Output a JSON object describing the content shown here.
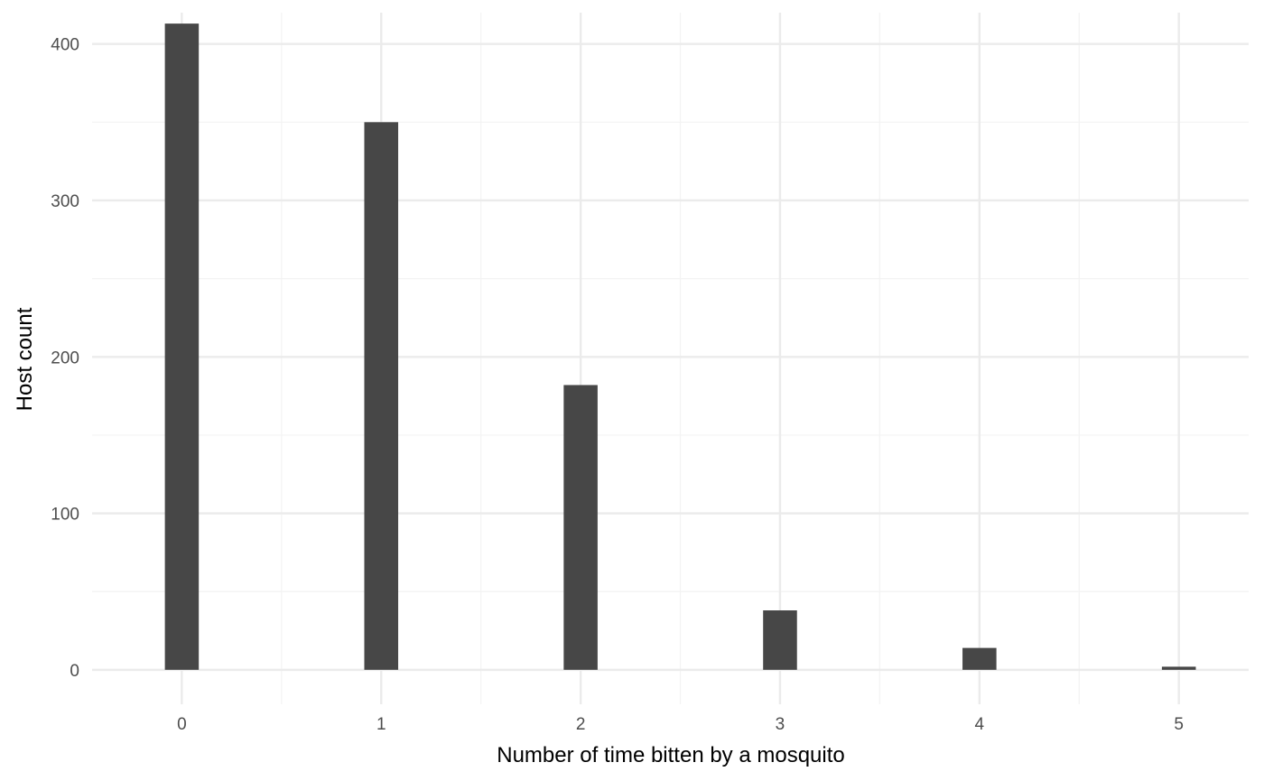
{
  "chart_data": {
    "type": "bar",
    "title": "",
    "xlabel": "Number of time bitten by a mosquito",
    "ylabel": "Host count",
    "x_ticks": [
      "0",
      "1",
      "2",
      "3",
      "4",
      "5"
    ],
    "y_ticks": [
      "0",
      "100",
      "200",
      "300",
      "400"
    ],
    "xlim": [
      -0.45,
      5.35
    ],
    "ylim": [
      -22,
      420
    ],
    "grid": true,
    "legend": "none",
    "series": [
      {
        "x": [
          0,
          1,
          2,
          3,
          4,
          5
        ],
        "values": [
          413,
          350,
          182,
          38,
          14,
          2
        ]
      }
    ],
    "colors": {
      "bar": "#474747",
      "grid_major": "#ebebeb",
      "grid_minor": "#f3f3f3",
      "tick_text": "#4d4d4d",
      "title_text": "#000000"
    }
  }
}
